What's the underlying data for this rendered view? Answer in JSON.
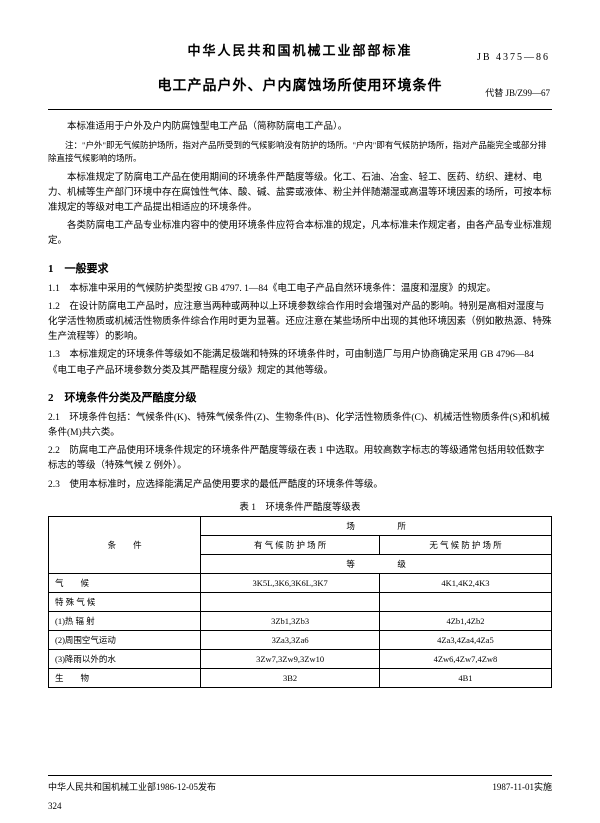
{
  "header": {
    "gov_title": "中华人民共和国机械工业部部标准",
    "doc_code": "JB  4375—86",
    "main_title": "电工产品户外、户内腐蚀场所使用环境条件",
    "sub_code": "代替 JB/Z99—67"
  },
  "intro": {
    "p1": "本标准适用于户外及户内防腐蚀型电工产品（简称防腐电工产品）。",
    "note": "注：\"户外\"即无气候防护场所，指对产品所受到的气候影响没有防护的场所。\"户内\"即有气候防护场所，指对产品能完全或部分排除直接气候影响的场所。",
    "p2": "本标准规定了防腐电工产品在使用期间的环境条件严酷度等级。化工、石油、冶金、轻工、医药、纺织、建材、电力、机械等生产部门环境中存在腐蚀性气体、酸、碱、盐雾或液体、粉尘并伴随潮湿或高温等环境因素的场所，可按本标准规定的等级对电工产品提出相适应的环境条件。",
    "p3": "各类防腐电工产品专业标准内容中的使用环境条件应符合本标准的规定，凡本标准未作规定者，由各产品专业标准规定。"
  },
  "s1": {
    "title": "1　一般要求",
    "p11": "1.1　本标准中采用的气候防护类型按 GB 4797. 1—84《电工电子产品自然环境条件：温度和湿度》的规定。",
    "p12": "1.2　在设计防腐电工产品时，应注意当两种或两种以上环境参数综合作用时会增强对产品的影响。特别是高相对湿度与化学活性物质或机械活性物质条件综合作用时更为显著。还应注意在某些场所中出现的其他环境因素（例如散热源、特殊生产流程等）的影响。",
    "p13": "1.3　本标准规定的环境条件等级如不能满足极端和特殊的环境条件时，可由制造厂与用户协商确定采用 GB 4796—84《电工电子产品环境参数分类及其严酷程度分级》规定的其他等级。"
  },
  "s2": {
    "title": "2　环境条件分类及严酷度分级",
    "p21": "2.1　环境条件包括：气候条件(K)、特殊气候条件(Z)、生物条件(B)、化学活性物质条件(C)、机械活性物质条件(S)和机械条件(M)共六类。",
    "p22": "2.2　防腐电工产品使用环境条件规定的环境条件严酷度等级在表 1 中选取。用较高数字标志的等级通常包括用较低数字标志的等级（特殊气候 Z 例外）。",
    "p23": "2.3　使用本标准时，应选择能满足产品使用要求的最低严酷度的环境条件等级。"
  },
  "table": {
    "caption": "表 1　环境条件严酷度等级表",
    "header": {
      "col1": "条　　件",
      "place": "场　　　　　所",
      "indoor": "有 气 候 防 护 场 所",
      "outdoor": "无 气 候 防 护 场 所",
      "grade": "等　　　　　级"
    },
    "rows": {
      "r1": {
        "c1": "气　　候",
        "c2": "3K5L,3K6,3K6L,3K7",
        "c3": "4K1,4K2,4K3"
      },
      "r2": {
        "c1": "特 殊 气 候"
      },
      "r3": {
        "c1": "(1)热 辐 射",
        "c2": "3Zb1,3Zb3",
        "c3": "4Zb1,4Zb2"
      },
      "r4": {
        "c1": "(2)周围空气运动",
        "c2": "3Za3,3Za6",
        "c3": "4Za3,4Za4,4Za5"
      },
      "r5": {
        "c1": "(3)降雨以外的水",
        "c2": "3Zw7,3Zw9,3Zw10",
        "c3": "4Zw6,4Zw7,4Zw8"
      },
      "r6": {
        "c1": "生　　物",
        "c2": "3B2",
        "c3": "4B1"
      }
    }
  },
  "footer": {
    "issue": "中华人民共和国机械工业部1986-12-05发布",
    "effective": "1987-11-01实施",
    "page": "324"
  },
  "styling": {
    "bg_color": "#ffffff",
    "text_color": "#000000",
    "body_fontsize": 9.5,
    "title_fontsize": 14,
    "section_fontsize": 11
  }
}
